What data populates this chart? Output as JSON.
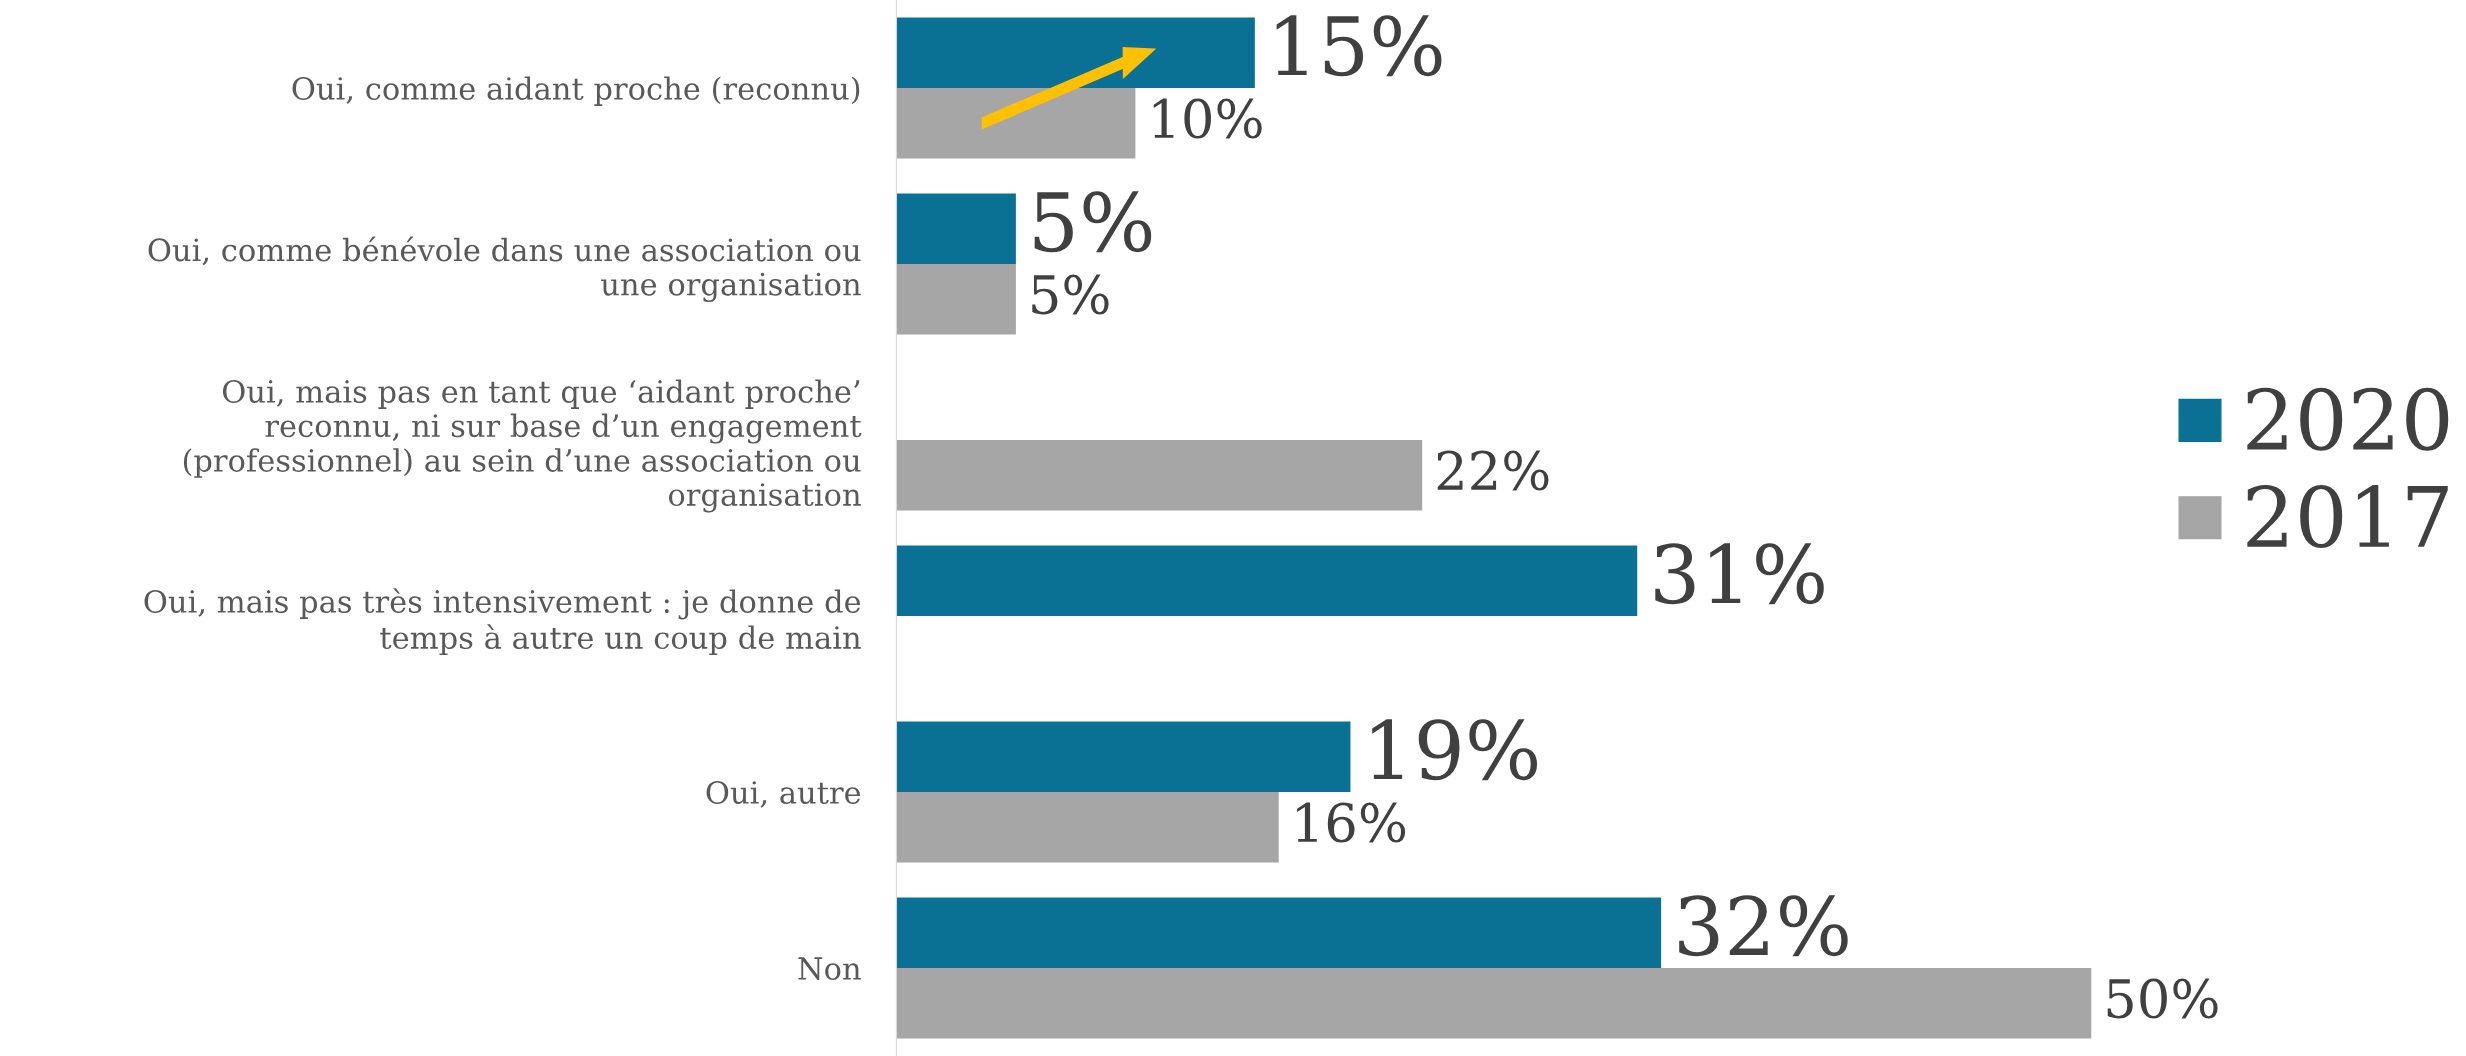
{
  "chart_data": {
    "type": "bar",
    "orientation": "horizontal",
    "categories": [
      "Oui, comme aidant proche (reconnu)",
      "Oui, comme bénévole dans une association ou\nune organisation",
      "Oui, mais pas en tant que ‘aidant proche’\nreconnu, ni sur base d’un engagement\n(professionnel) au sein d’une association ou\norganisation",
      "Oui, mais pas très intensivement : je donne de\ntemps à autre un coup de main",
      "Oui, autre",
      "Non"
    ],
    "series": [
      {
        "name": "2020",
        "color": "#0b7194",
        "values": [
          15,
          5,
          null,
          31,
          19,
          32
        ],
        "value_labels": [
          "15%",
          "5%",
          null,
          "31%",
          "19%",
          "32%"
        ]
      },
      {
        "name": "2017",
        "color": "#a6a6a6",
        "values": [
          10,
          5,
          22,
          null,
          16,
          50
        ],
        "value_labels": [
          "10%",
          "5%",
          "22%",
          null,
          "16%",
          "50%"
        ]
      }
    ],
    "legend": "right",
    "grid": false
  }
}
